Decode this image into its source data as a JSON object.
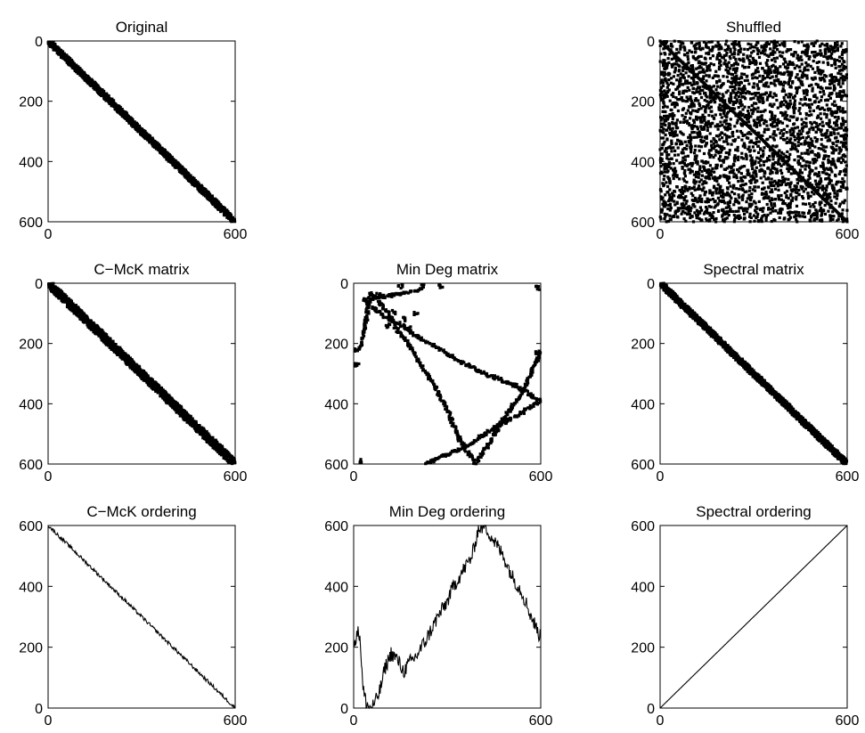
{
  "figure": {
    "background": "#ffffff",
    "ink": "#000000"
  },
  "chart_data": [
    {
      "id": "original",
      "type": "spy",
      "title": "Original",
      "xlim": [
        0,
        600
      ],
      "ylim": [
        0,
        600
      ],
      "y_reversed": true,
      "xticks": [
        "0",
        "600"
      ],
      "yticks": [
        "0",
        "200",
        "400",
        "600"
      ],
      "pattern": {
        "kind": "band",
        "description": "nonzeros concentrated along main diagonal",
        "bandwidth": 12
      }
    },
    {
      "id": "shuffled",
      "type": "spy",
      "title": "Shuffled",
      "xlim": [
        0,
        600
      ],
      "ylim": [
        0,
        600
      ],
      "y_reversed": true,
      "xticks": [
        "0",
        "600"
      ],
      "yticks": [
        "0",
        "200",
        "400",
        "600"
      ],
      "pattern": {
        "kind": "random",
        "description": "nonzeros scattered uniformly with faint diagonal",
        "count": 3200
      }
    },
    {
      "id": "cmck-matrix",
      "type": "spy",
      "title": "C−McK matrix",
      "xlim": [
        0,
        600
      ],
      "ylim": [
        0,
        600
      ],
      "y_reversed": true,
      "xticks": [
        "0",
        "600"
      ],
      "yticks": [
        "0",
        "200",
        "400",
        "600"
      ],
      "pattern": {
        "kind": "band",
        "description": "wide band along main diagonal",
        "bandwidth": 16
      }
    },
    {
      "id": "mindeg-matrix",
      "type": "spy",
      "title": "Min Deg matrix",
      "xlim": [
        0,
        600
      ],
      "ylim": [
        0,
        600
      ],
      "y_reversed": true,
      "xticks": [
        "0",
        "600"
      ],
      "yticks": [
        "0",
        "200",
        "400",
        "600"
      ],
      "pattern": {
        "kind": "path",
        "description": "X-shaped structure: path follows Min Deg ordering plus its transpose",
        "path": [
          [
            0,
            225
          ],
          [
            25,
            210
          ],
          [
            55,
            30
          ],
          [
            110,
            100
          ],
          [
            140,
            155
          ],
          [
            175,
            200
          ],
          [
            215,
            270
          ],
          [
            265,
            350
          ],
          [
            300,
            420
          ],
          [
            340,
            520
          ],
          [
            390,
            600
          ],
          [
            430,
            540
          ],
          [
            480,
            450
          ],
          [
            530,
            380
          ],
          [
            570,
            300
          ],
          [
            600,
            225
          ]
        ],
        "extra_points": [
          [
            50,
            60
          ],
          [
            80,
            40
          ],
          [
            110,
            140
          ],
          [
            130,
            95
          ],
          [
            160,
            120
          ],
          [
            180,
            150
          ],
          [
            200,
            100
          ],
          [
            150,
            10
          ],
          [
            280,
            10
          ],
          [
            590,
            15
          ],
          [
            20,
            590
          ],
          [
            590,
            230
          ],
          [
            10,
            270
          ]
        ]
      }
    },
    {
      "id": "spectral-matrix",
      "type": "spy",
      "title": "Spectral matrix",
      "xlim": [
        0,
        600
      ],
      "ylim": [
        0,
        600
      ],
      "y_reversed": true,
      "xticks": [
        "0",
        "600"
      ],
      "yticks": [
        "0",
        "200",
        "400",
        "600"
      ],
      "pattern": {
        "kind": "band",
        "description": "narrow band along main diagonal",
        "bandwidth": 12
      }
    },
    {
      "id": "cmck-ordering",
      "type": "line",
      "title": "C−McK ordering",
      "xlim": [
        0,
        600
      ],
      "ylim": [
        0,
        600
      ],
      "xticks": [
        "0",
        "600"
      ],
      "yticks": [
        "0",
        "200",
        "400",
        "600"
      ],
      "x": [
        0,
        100,
        200,
        300,
        400,
        500,
        600
      ],
      "y": [
        600,
        500,
        400,
        300,
        200,
        100,
        0
      ],
      "noise": 6
    },
    {
      "id": "mindeg-ordering",
      "type": "line",
      "title": "Min Deg ordering",
      "xlim": [
        0,
        600
      ],
      "ylim": [
        0,
        600
      ],
      "xticks": [
        "0",
        "600"
      ],
      "yticks": [
        "0",
        "200",
        "400",
        "600"
      ],
      "x": [
        0,
        10,
        20,
        25,
        30,
        40,
        50,
        60,
        70,
        85,
        100,
        120,
        140,
        160,
        180,
        200,
        230,
        270,
        300,
        320,
        350,
        380,
        400,
        420,
        450,
        480,
        510,
        540,
        570,
        600
      ],
      "y": [
        200,
        250,
        240,
        150,
        60,
        20,
        0,
        5,
        20,
        60,
        130,
        180,
        160,
        120,
        150,
        170,
        220,
        300,
        350,
        400,
        450,
        500,
        590,
        600,
        550,
        500,
        430,
        380,
        300,
        230
      ],
      "noise": 25
    },
    {
      "id": "spectral-ordering",
      "type": "line",
      "title": "Spectral ordering",
      "xlim": [
        0,
        600
      ],
      "ylim": [
        0,
        600
      ],
      "xticks": [
        "0",
        "600"
      ],
      "yticks": [
        "0",
        "200",
        "400",
        "600"
      ],
      "x": [
        0,
        600
      ],
      "y": [
        0,
        600
      ],
      "noise": 0
    }
  ]
}
